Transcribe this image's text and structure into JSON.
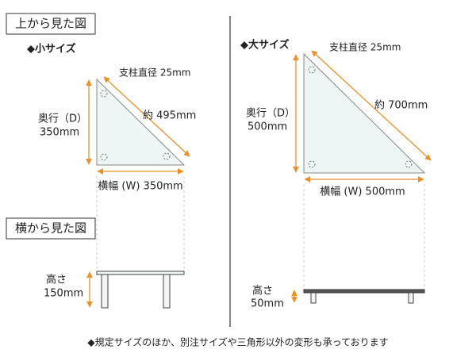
{
  "top_view": {
    "title": "上から見た図",
    "small": {
      "heading": "◆小サイズ",
      "post": "支柱直径 25mm",
      "diagonal": "約 495mm",
      "depth_label": "奥行（D）",
      "depth_value": "350mm",
      "width": "横幅 (W) 350mm"
    },
    "large": {
      "heading": "◆大サイズ",
      "post": "支柱直径 25mm",
      "diagonal": "約 700mm",
      "depth_label": "奥行（D）",
      "depth_value": "500mm",
      "width": "横幅 (W) 500mm"
    }
  },
  "side_view": {
    "title": "横から見た図",
    "small": {
      "height_label": "高さ",
      "height_value": "150mm"
    },
    "large": {
      "height_label": "高さ",
      "height_value": "50mm"
    }
  },
  "footer": "◆規定サイズのほか、別注サイズや三角形以外の変形も承っております"
}
